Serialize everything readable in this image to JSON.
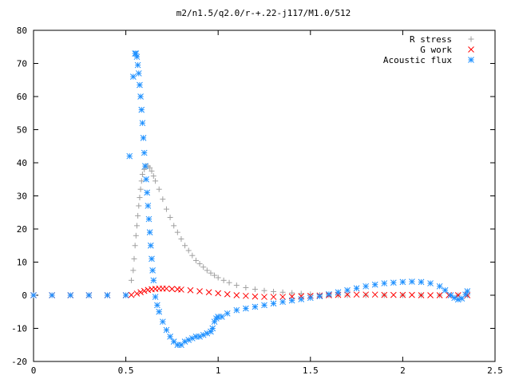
{
  "chart_data": {
    "type": "scatter",
    "title": "m2/n1.5/q2.0/r-+.22-j117/M1.0/512",
    "xlabel": "",
    "ylabel": "",
    "xlim": [
      0,
      2.5
    ],
    "ylim": [
      -20,
      80
    ],
    "xticks": [
      0,
      0.5,
      1,
      1.5,
      2,
      2.5
    ],
    "xtick_labels": [
      "0",
      "0.5",
      "1",
      "1.5",
      "2",
      "2.5"
    ],
    "yticks": [
      -20,
      -10,
      0,
      10,
      20,
      30,
      40,
      50,
      60,
      70,
      80
    ],
    "ytick_labels": [
      "-20",
      "-10",
      "0",
      "10",
      "20",
      "30",
      "40",
      "50",
      "60",
      "70",
      "80"
    ],
    "grid": false,
    "legend_position": "top-right",
    "series": [
      {
        "name": "R stress",
        "marker": "plus",
        "color": "#a0a0a0",
        "x": [
          0.53,
          0.54,
          0.545,
          0.55,
          0.555,
          0.56,
          0.565,
          0.57,
          0.575,
          0.58,
          0.585,
          0.59,
          0.6,
          0.61,
          0.62,
          0.63,
          0.64,
          0.65,
          0.66,
          0.68,
          0.7,
          0.72,
          0.74,
          0.76,
          0.78,
          0.8,
          0.82,
          0.84,
          0.86,
          0.88,
          0.9,
          0.92,
          0.94,
          0.96,
          0.98,
          1.0,
          1.03,
          1.06,
          1.1,
          1.15,
          1.2,
          1.25,
          1.3,
          1.35,
          1.4,
          1.45,
          1.5,
          1.55,
          1.6,
          1.65,
          1.7,
          1.8,
          1.9,
          2.0,
          2.1,
          2.2,
          2.3,
          2.35
        ],
        "y": [
          4.5,
          7.5,
          11,
          15,
          18,
          21,
          24,
          27,
          29.5,
          32,
          34.5,
          36.5,
          38,
          39,
          39,
          38.5,
          37.5,
          36,
          34.5,
          32,
          29,
          26,
          23.5,
          21,
          19,
          17,
          15,
          13.5,
          12,
          10.5,
          9.5,
          8.5,
          7.5,
          6.7,
          6,
          5.3,
          4.5,
          3.8,
          3,
          2.3,
          1.8,
          1.4,
          1.1,
          0.9,
          0.7,
          0.5,
          0.3,
          0.1,
          0,
          0,
          0,
          0,
          0,
          0,
          0,
          0,
          0,
          0
        ]
      },
      {
        "name": "G work",
        "marker": "cross",
        "color": "#ff0000",
        "x": [
          0,
          0.1,
          0.2,
          0.3,
          0.4,
          0.5,
          0.53,
          0.56,
          0.58,
          0.6,
          0.62,
          0.64,
          0.66,
          0.68,
          0.7,
          0.72,
          0.75,
          0.78,
          0.8,
          0.85,
          0.9,
          0.95,
          1.0,
          1.05,
          1.1,
          1.15,
          1.2,
          1.25,
          1.3,
          1.35,
          1.4,
          1.45,
          1.5,
          1.55,
          1.6,
          1.65,
          1.7,
          1.75,
          1.8,
          1.85,
          1.9,
          1.95,
          2.0,
          2.05,
          2.1,
          2.15,
          2.2,
          2.25,
          2.3,
          2.35
        ],
        "y": [
          0,
          0,
          0,
          0,
          0,
          0,
          0.1,
          0.5,
          0.9,
          1.3,
          1.6,
          1.8,
          1.9,
          2.0,
          2.0,
          2.0,
          1.9,
          1.8,
          1.7,
          1.5,
          1.2,
          0.9,
          0.6,
          0.3,
          0,
          -0.2,
          -0.4,
          -0.5,
          -0.5,
          -0.5,
          -0.4,
          -0.3,
          -0.2,
          -0.1,
          0,
          0.1,
          0.2,
          0.2,
          0.2,
          0.2,
          0.1,
          0.1,
          0.1,
          0.1,
          0,
          0,
          0,
          0,
          0,
          0
        ]
      },
      {
        "name": "Acoustic flux",
        "marker": "star",
        "color": "#1e90ff",
        "x": [
          0,
          0.1,
          0.2,
          0.3,
          0.4,
          0.5,
          0.52,
          0.54,
          0.55,
          0.555,
          0.56,
          0.565,
          0.57,
          0.575,
          0.58,
          0.585,
          0.59,
          0.595,
          0.6,
          0.605,
          0.61,
          0.615,
          0.62,
          0.625,
          0.63,
          0.635,
          0.64,
          0.645,
          0.65,
          0.66,
          0.67,
          0.68,
          0.7,
          0.72,
          0.74,
          0.76,
          0.78,
          0.8,
          0.82,
          0.84,
          0.86,
          0.88,
          0.9,
          0.92,
          0.94,
          0.96,
          0.97,
          0.98,
          0.99,
          1.0,
          1.02,
          1.05,
          1.1,
          1.15,
          1.2,
          1.25,
          1.3,
          1.35,
          1.4,
          1.45,
          1.5,
          1.55,
          1.6,
          1.65,
          1.7,
          1.75,
          1.8,
          1.85,
          1.9,
          1.95,
          2.0,
          2.05,
          2.1,
          2.15,
          2.2,
          2.23,
          2.26,
          2.28,
          2.3,
          2.32,
          2.34,
          2.35
        ],
        "y": [
          0,
          0,
          0,
          0,
          0,
          0,
          42,
          66,
          73,
          73,
          72,
          69.5,
          67,
          63.5,
          60,
          56,
          52,
          47.5,
          43,
          39,
          35,
          31,
          27,
          23,
          19,
          15,
          11,
          7.5,
          4.5,
          -0.5,
          -3,
          -5,
          -8,
          -10.5,
          -12.5,
          -14,
          -15,
          -15,
          -14,
          -13.5,
          -13,
          -12.5,
          -12.5,
          -12,
          -11.5,
          -11,
          -10,
          -8,
          -7,
          -6.5,
          -6.5,
          -5.5,
          -4.5,
          -4,
          -3.5,
          -3,
          -2.5,
          -2,
          -1.6,
          -1.2,
          -0.8,
          -0.3,
          0.3,
          0.9,
          1.5,
          2.1,
          2.7,
          3.2,
          3.6,
          3.8,
          4.0,
          4.1,
          4.0,
          3.6,
          2.7,
          1.5,
          0,
          -0.8,
          -1.3,
          -1,
          0.2,
          1.2
        ]
      }
    ]
  }
}
